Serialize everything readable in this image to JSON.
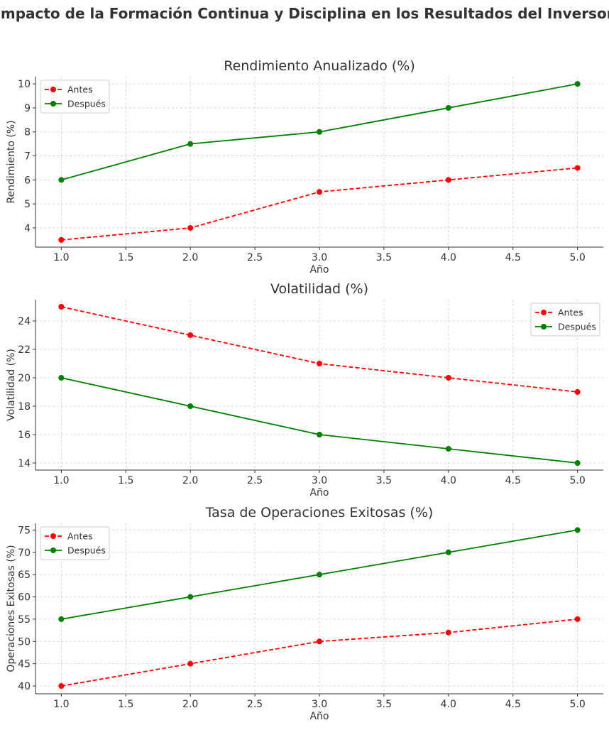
{
  "suptitle": "Impacto de la Formación Continua y Disciplina en los Resultados del Inversor",
  "colors": {
    "antes": "#ff0000",
    "despues": "#008000",
    "grid": "#cccccc",
    "text": "#333333"
  },
  "chart_data": [
    {
      "type": "line",
      "title": "Rendimiento Anualizado (%)",
      "xlabel": "Año",
      "ylabel": "Rendimiento (%)",
      "x": [
        1,
        2,
        3,
        4,
        5
      ],
      "xlim": [
        0.8,
        5.2
      ],
      "ylim": [
        3.2,
        10.3
      ],
      "xticks": [
        1.0,
        1.5,
        2.0,
        2.5,
        3.0,
        3.5,
        4.0,
        4.5,
        5.0
      ],
      "yticks": [
        4,
        5,
        6,
        7,
        8,
        9,
        10
      ],
      "ytick_decimals": 0,
      "grid": true,
      "legend": "top-left",
      "series": [
        {
          "name": "Antes",
          "values": [
            3.5,
            4,
            5.5,
            6,
            6.5
          ],
          "color": "#ff0000",
          "style": "dashed"
        },
        {
          "name": "Después",
          "values": [
            6,
            7.5,
            8,
            9,
            10
          ],
          "color": "#008000",
          "style": "solid"
        }
      ]
    },
    {
      "type": "line",
      "title": "Volatilidad (%)",
      "xlabel": "Año",
      "ylabel": "Volatilidad (%)",
      "x": [
        1,
        2,
        3,
        4,
        5
      ],
      "xlim": [
        0.8,
        5.2
      ],
      "ylim": [
        13.5,
        25.5
      ],
      "xticks": [
        1.0,
        1.5,
        2.0,
        2.5,
        3.0,
        3.5,
        4.0,
        4.5,
        5.0
      ],
      "yticks": [
        14,
        16,
        18,
        20,
        22,
        24
      ],
      "ytick_decimals": 0,
      "grid": true,
      "legend": "top-right",
      "series": [
        {
          "name": "Antes",
          "values": [
            25,
            23,
            21,
            20,
            19
          ],
          "color": "#ff0000",
          "style": "dashed"
        },
        {
          "name": "Después",
          "values": [
            20,
            18,
            16,
            15,
            14
          ],
          "color": "#008000",
          "style": "solid"
        }
      ]
    },
    {
      "type": "line",
      "title": "Tasa de Operaciones Exitosas (%)",
      "xlabel": "Año",
      "ylabel": "Operaciones Exitosas (%)",
      "x": [
        1,
        2,
        3,
        4,
        5
      ],
      "xlim": [
        0.8,
        5.2
      ],
      "ylim": [
        38.25,
        76.5
      ],
      "xticks": [
        1.0,
        1.5,
        2.0,
        2.5,
        3.0,
        3.5,
        4.0,
        4.5,
        5.0
      ],
      "yticks": [
        40,
        45,
        50,
        55,
        60,
        65,
        70,
        75
      ],
      "ytick_decimals": 0,
      "grid": true,
      "legend": "top-left",
      "series": [
        {
          "name": "Antes",
          "values": [
            40,
            45,
            50,
            52,
            55
          ],
          "color": "#ff0000",
          "style": "dashed"
        },
        {
          "name": "Después",
          "values": [
            55,
            60,
            65,
            70,
            75
          ],
          "color": "#008000",
          "style": "solid"
        }
      ]
    }
  ]
}
